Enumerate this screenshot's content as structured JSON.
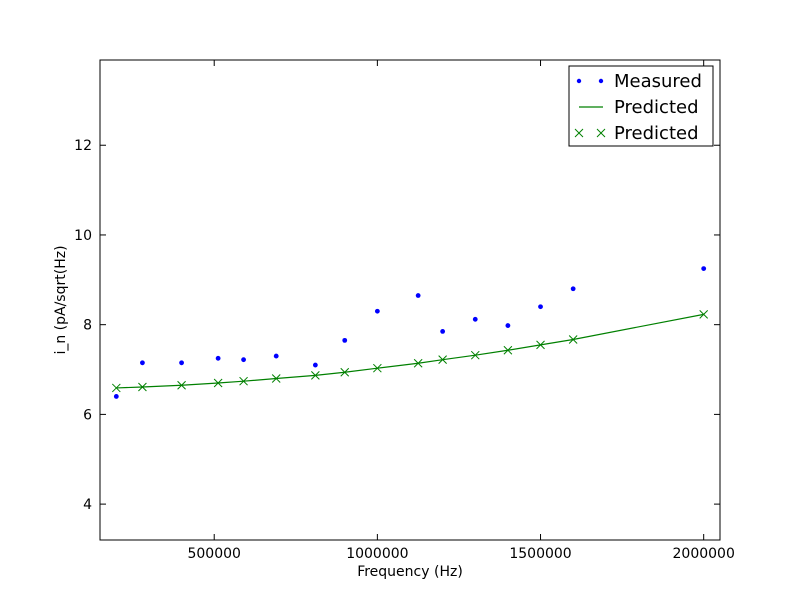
{
  "chart_data": {
    "type": "line",
    "title": "",
    "xlabel": "Frequency (Hz)",
    "ylabel": "i_n (pA/sqrt(Hz)",
    "xlim": [
      150000,
      2050000
    ],
    "ylim": [
      3.2,
      13.9
    ],
    "xticks": [
      500000,
      1000000,
      1500000,
      2000000
    ],
    "xtick_labels": [
      "500000",
      "1000000",
      "1500000",
      "2000000"
    ],
    "yticks": [
      4,
      6,
      8,
      10,
      12
    ],
    "ytick_labels": [
      "4",
      "6",
      "8",
      "10",
      "12"
    ],
    "grid": false,
    "legend_position": "top-right",
    "series": [
      {
        "name": "Measured",
        "style": "points",
        "color": "#0000ff",
        "x": [
          200000,
          280000,
          400000,
          512000,
          590000,
          690000,
          810000,
          900000,
          1000000,
          1125000,
          1200000,
          1300000,
          1400000,
          1500000,
          1600000,
          2000000
        ],
        "y": [
          6.4,
          7.15,
          7.15,
          7.25,
          7.22,
          7.3,
          7.1,
          7.65,
          8.3,
          8.65,
          7.85,
          8.12,
          7.98,
          8.4,
          8.8,
          9.25
        ]
      },
      {
        "name": "Predicted",
        "style": "line",
        "color": "#008000",
        "x": [
          200000,
          280000,
          400000,
          512000,
          590000,
          690000,
          810000,
          900000,
          1000000,
          1125000,
          1200000,
          1300000,
          1400000,
          1500000,
          1600000,
          2000000
        ],
        "y": [
          6.59,
          6.61,
          6.65,
          6.7,
          6.74,
          6.8,
          6.87,
          6.94,
          7.03,
          7.14,
          7.22,
          7.32,
          7.43,
          7.55,
          7.67,
          8.23
        ]
      },
      {
        "name": "Predicted",
        "style": "x-markers",
        "color": "#008000",
        "x": [
          200000,
          280000,
          400000,
          512000,
          590000,
          690000,
          810000,
          900000,
          1000000,
          1125000,
          1200000,
          1300000,
          1400000,
          1500000,
          1600000,
          2000000
        ],
        "y": [
          6.59,
          6.61,
          6.65,
          6.7,
          6.74,
          6.8,
          6.87,
          6.94,
          7.03,
          7.14,
          7.22,
          7.32,
          7.43,
          7.55,
          7.67,
          8.23
        ]
      }
    ]
  }
}
